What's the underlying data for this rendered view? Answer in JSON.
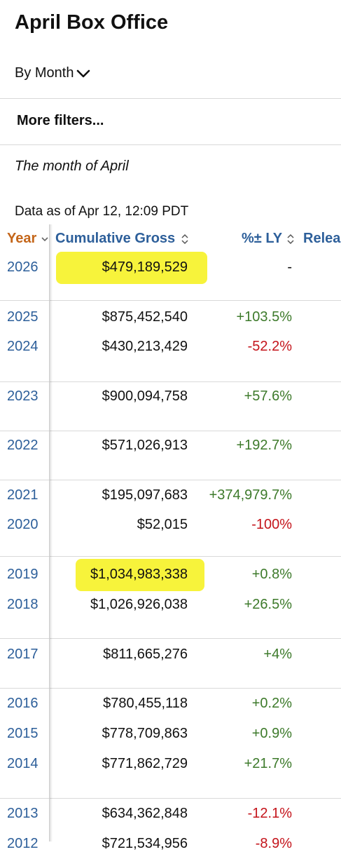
{
  "page": {
    "title": "April Box Office",
    "view_selector": "By Month",
    "more_filters": "More filters...",
    "description": "The month of April",
    "data_as_of": "Data as of Apr 12, 12:09 PDT"
  },
  "table": {
    "columns": {
      "year": "Year",
      "gross": "Cumulative Gross",
      "pct": "%± LY",
      "release": "Relea"
    },
    "rows": [
      {
        "year": "2026",
        "gross": "$479,189,529",
        "pct": "-",
        "trend": "neutral",
        "highlighted": true
      },
      {
        "year": "2025",
        "gross": "$875,452,540",
        "pct": "+103.5%",
        "trend": "up",
        "highlighted": false
      },
      {
        "year": "2024",
        "gross": "$430,213,429",
        "pct": "-52.2%",
        "trend": "down",
        "highlighted": false
      },
      {
        "year": "2023",
        "gross": "$900,094,758",
        "pct": "+57.6%",
        "trend": "up",
        "highlighted": false
      },
      {
        "year": "2022",
        "gross": "$571,026,913",
        "pct": "+192.7%",
        "trend": "up",
        "highlighted": false
      },
      {
        "year": "2021",
        "gross": "$195,097,683",
        "pct": "+374,979.7%",
        "trend": "up",
        "highlighted": false
      },
      {
        "year": "2020",
        "gross": "$52,015",
        "pct": "-100%",
        "trend": "down",
        "highlighted": false
      },
      {
        "year": "2019",
        "gross": "$1,034,983,338",
        "pct": "+0.8%",
        "trend": "up",
        "highlighted": true
      },
      {
        "year": "2018",
        "gross": "$1,026,926,038",
        "pct": "+26.5%",
        "trend": "up",
        "highlighted": false
      },
      {
        "year": "2017",
        "gross": "$811,665,276",
        "pct": "+4%",
        "trend": "up",
        "highlighted": false
      },
      {
        "year": "2016",
        "gross": "$780,455,118",
        "pct": "+0.2%",
        "trend": "up",
        "highlighted": false
      },
      {
        "year": "2015",
        "gross": "$778,709,863",
        "pct": "+0.9%",
        "trend": "up",
        "highlighted": false
      },
      {
        "year": "2014",
        "gross": "$771,862,729",
        "pct": "+21.7%",
        "trend": "up",
        "highlighted": false
      },
      {
        "year": "2013",
        "gross": "$634,362,848",
        "pct": "-12.1%",
        "trend": "down",
        "highlighted": false
      },
      {
        "year": "2012",
        "gross": "$721,534,956",
        "pct": "-8.9%",
        "trend": "down",
        "highlighted": false
      }
    ]
  },
  "colors": {
    "link": "#2d5f9a",
    "sorted_header": "#c4661a",
    "positive": "#3d7a2b",
    "negative": "#c4141b",
    "highlight": "#f6f22a"
  }
}
